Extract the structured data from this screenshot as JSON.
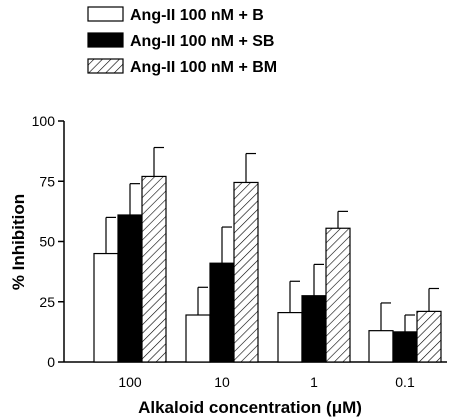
{
  "chart_data": {
    "type": "bar",
    "title": "",
    "xlabel": "Alkaloid concentration (μM)",
    "ylabel": "% Inhibition",
    "categories": [
      "100",
      "10",
      "1",
      "0.1"
    ],
    "ylim": [
      0,
      100
    ],
    "yticks": [
      "0",
      "25",
      "50",
      "75",
      "100"
    ],
    "legend_position": "top-center",
    "grid": false,
    "error_bars": "upper",
    "series": [
      {
        "name": "Ang-II 100 nM + B",
        "fill": "white",
        "values": [
          45,
          19.5,
          20.5,
          13
        ],
        "errors": [
          15,
          11.5,
          13,
          11.5
        ]
      },
      {
        "name": "Ang-II 100 nM + SB",
        "fill": "black",
        "values": [
          61,
          41,
          27.5,
          12.5
        ],
        "errors": [
          13,
          15,
          13,
          7
        ]
      },
      {
        "name": "Ang-II 100 nM + BM",
        "fill": "hatched",
        "values": [
          77,
          74.5,
          55.5,
          21
        ],
        "errors": [
          12,
          12,
          7,
          9.5
        ]
      }
    ]
  }
}
